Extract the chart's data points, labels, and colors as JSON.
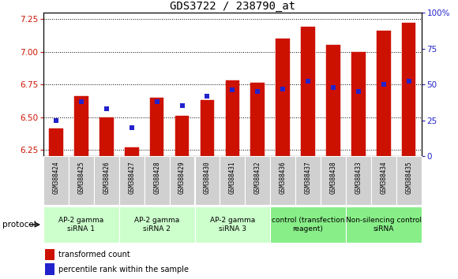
{
  "title": "GDS3722 / 238790_at",
  "samples": [
    "GSM388424",
    "GSM388425",
    "GSM388426",
    "GSM388427",
    "GSM388428",
    "GSM388429",
    "GSM388430",
    "GSM388431",
    "GSM388432",
    "GSM388436",
    "GSM388437",
    "GSM388438",
    "GSM388433",
    "GSM388434",
    "GSM388435"
  ],
  "red_values": [
    6.41,
    6.66,
    6.5,
    6.27,
    6.65,
    6.51,
    6.63,
    6.78,
    6.76,
    7.1,
    7.19,
    7.05,
    7.0,
    7.16,
    7.22
  ],
  "blue_values": [
    25,
    38,
    33,
    20,
    38,
    35,
    42,
    46,
    45,
    47,
    52,
    48,
    45,
    50,
    52
  ],
  "ylim_left": [
    6.2,
    7.3
  ],
  "ylim_right": [
    0,
    100
  ],
  "yticks_left": [
    6.25,
    6.5,
    6.75,
    7.0,
    7.25
  ],
  "yticks_right": [
    0,
    25,
    50,
    75,
    100
  ],
  "groups": [
    {
      "label": "AP-2 gamma\nsiRNA 1",
      "start": 0,
      "end": 3,
      "color": "#ccffcc"
    },
    {
      "label": "AP-2 gamma\nsiRNA 2",
      "start": 3,
      "end": 6,
      "color": "#ccffcc"
    },
    {
      "label": "AP-2 gamma\nsiRNA 3",
      "start": 6,
      "end": 9,
      "color": "#ccffcc"
    },
    {
      "label": "control (transfection\nreagent)",
      "start": 9,
      "end": 12,
      "color": "#88ee88"
    },
    {
      "label": "Non-silencing control\nsiRNA",
      "start": 12,
      "end": 15,
      "color": "#88ee88"
    }
  ],
  "bar_color": "#cc1100",
  "blue_color": "#2222cc",
  "bar_width": 0.55,
  "bar_bottom": 6.2,
  "left_label_color": "#cc1100",
  "right_label_color": "#2222cc",
  "protocol_label": "protocol",
  "legend1": "transformed count",
  "legend2": "percentile rank within the sample",
  "sample_cell_color": "#d0d0d0",
  "title_fontsize": 10,
  "tick_fontsize": 7.5,
  "sample_fontsize": 5.5,
  "group_fontsize": 6.5,
  "legend_fontsize": 7
}
